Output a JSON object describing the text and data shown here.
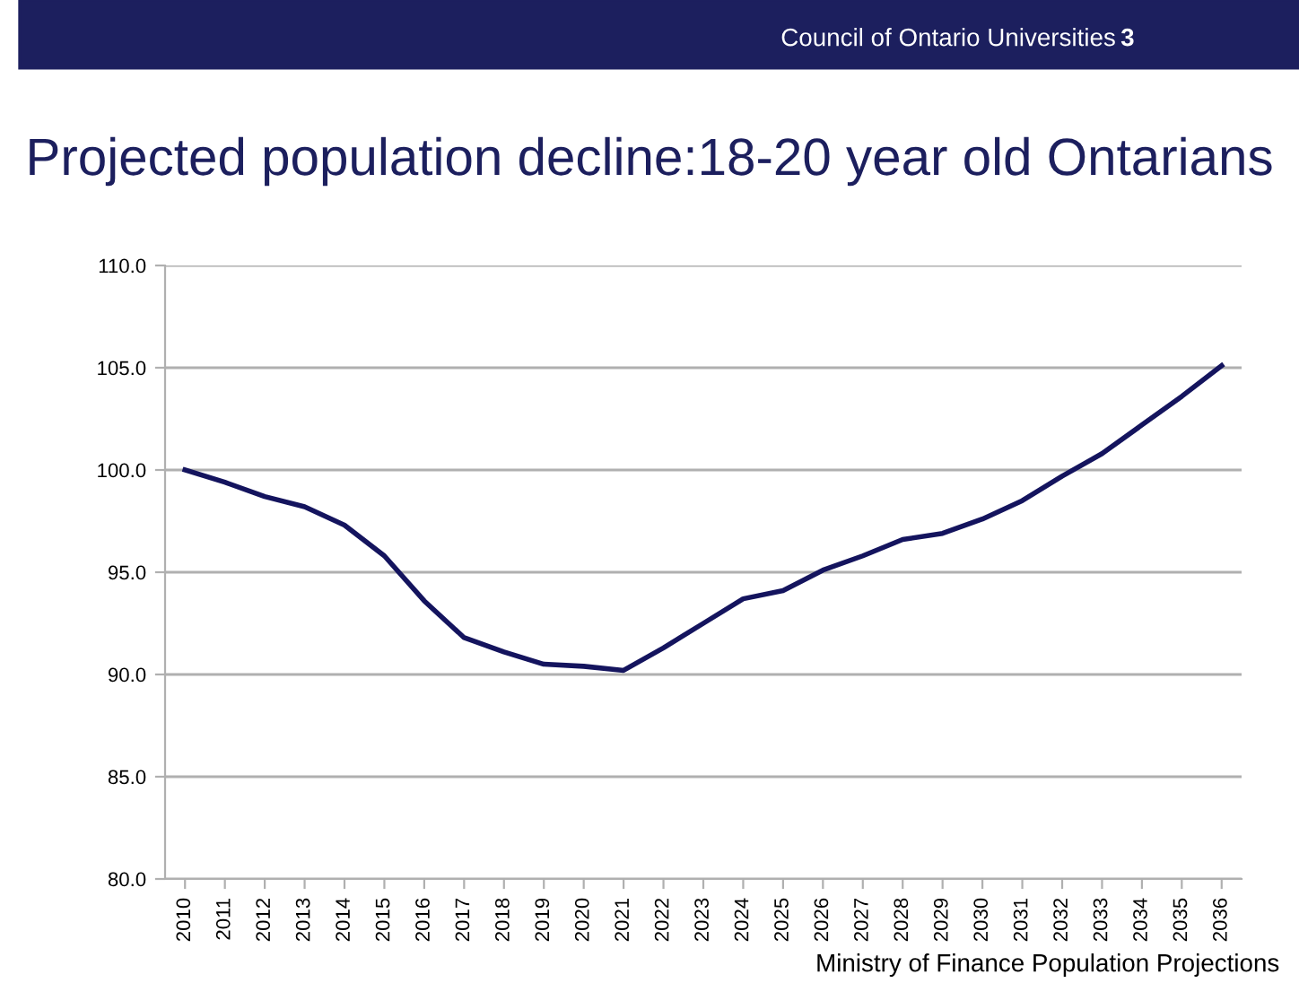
{
  "chart_data": {
    "type": "line",
    "title": "Projected population decline:18-20 year old Ontarians",
    "categories": [
      "2010",
      "2011",
      "2012",
      "2013",
      "2014",
      "2015",
      "2016",
      "2017",
      "2018",
      "2019",
      "2020",
      "2021",
      "2022",
      "2023",
      "2024",
      "2025",
      "2026",
      "2027",
      "2028",
      "2029",
      "2030",
      "2031",
      "2032",
      "2033",
      "2034",
      "2035",
      "2036"
    ],
    "series": [
      {
        "color": "#14145e",
        "values": [
          100.0,
          99.4,
          98.7,
          98.2,
          97.3,
          95.8,
          93.6,
          91.8,
          91.1,
          90.5,
          90.4,
          90.2,
          91.3,
          92.5,
          93.7,
          94.1,
          95.1,
          95.8,
          96.6,
          96.9,
          97.6,
          98.5,
          99.7,
          100.8,
          102.2,
          103.6,
          105.1
        ]
      }
    ],
    "ylim": [
      80,
      110
    ],
    "yticks": [
      {
        "value": 80,
        "label": "80.0"
      },
      {
        "value": 85,
        "label": "85.0"
      },
      {
        "value": 90,
        "label": "90.0"
      },
      {
        "value": 95,
        "label": "95.0"
      },
      {
        "value": 100,
        "label": "100.0"
      },
      {
        "value": 105,
        "label": "105.0"
      },
      {
        "value": 110,
        "label": "110.0"
      }
    ],
    "grid": "y",
    "legend": false,
    "marker": "none",
    "line_style": "solid",
    "annotations": [
      "Council of Ontario Universities",
      "3",
      "Ministry of Finance Population Projections"
    ]
  }
}
